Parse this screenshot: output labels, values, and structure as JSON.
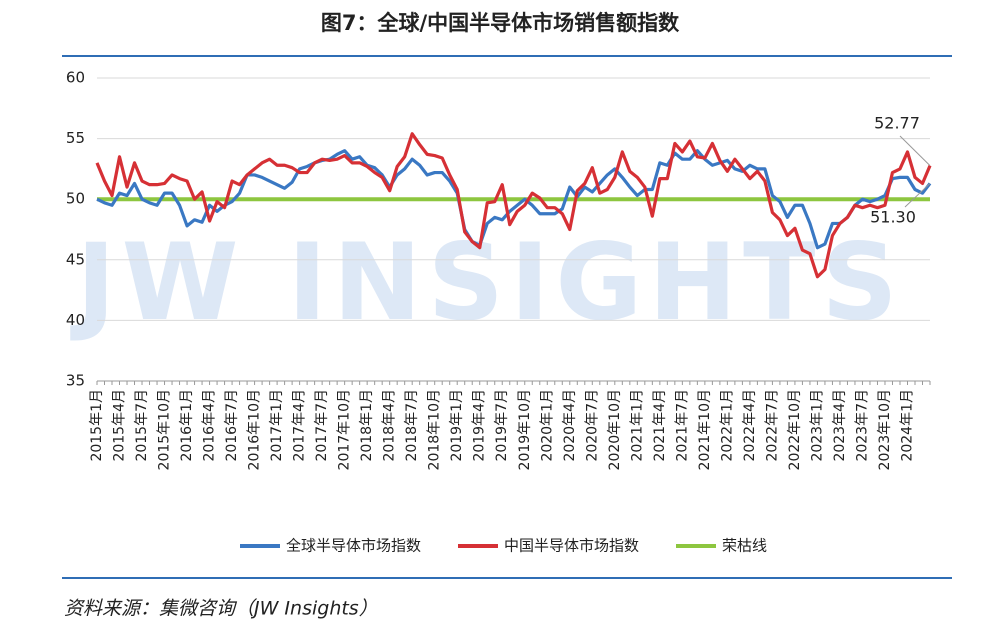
{
  "chart_data": {
    "type": "line",
    "title": "图7：全球/中国半导体市场销售额指数",
    "watermark": "JW INSIGHTS",
    "source": "资料来源：集微咨询（JW Insights）",
    "annotations": [
      "52.77",
      "51.30"
    ],
    "categories": [
      "2015年1月",
      null,
      null,
      "2015年4月",
      null,
      null,
      "2015年7月",
      null,
      null,
      "2015年10月",
      null,
      null,
      "2016年1月",
      null,
      null,
      "2016年4月",
      null,
      null,
      "2016年7月",
      null,
      null,
      "2016年10月",
      null,
      null,
      "2017年1月",
      null,
      null,
      "2017年4月",
      null,
      null,
      "2017年7月",
      null,
      null,
      "2017年10月",
      null,
      null,
      "2018年1月",
      null,
      null,
      "2018年4月",
      null,
      null,
      "2018年7月",
      null,
      null,
      "2018年10月",
      null,
      null,
      "2019年1月",
      null,
      null,
      "2019年4月",
      null,
      null,
      "2019年7月",
      null,
      null,
      "2019年10月",
      null,
      null,
      "2020年1月",
      null,
      null,
      "2020年4月",
      null,
      null,
      "2020年7月",
      null,
      null,
      "2020年10月",
      null,
      null,
      "2021年1月",
      null,
      null,
      "2021年4月",
      null,
      null,
      "2021年7月",
      null,
      null,
      "2021年10月",
      null,
      null,
      "2022年1月",
      null,
      null,
      "2022年4月",
      null,
      null,
      "2022年7月",
      null,
      null,
      "2022年10月",
      null,
      null,
      "2023年1月",
      null,
      null,
      "2023年4月",
      null,
      null,
      "2023年7月",
      null,
      null,
      "2023年10月",
      null,
      null,
      "2024年1月",
      null,
      null,
      null
    ],
    "series": [
      {
        "name": "全球半导体市场指数",
        "color": "#3a78c3",
        "values": [
          50.0,
          49.7,
          49.5,
          50.5,
          50.3,
          51.3,
          50.0,
          49.7,
          49.5,
          50.5,
          50.5,
          49.5,
          47.8,
          48.3,
          48.1,
          49.5,
          49.0,
          49.5,
          49.8,
          50.5,
          52.0,
          52.0,
          51.8,
          51.5,
          51.2,
          50.9,
          51.4,
          52.5,
          52.7,
          53.0,
          53.2,
          53.3,
          53.7,
          54.0,
          53.3,
          53.5,
          52.8,
          52.6,
          52.0,
          51.0,
          52.0,
          52.5,
          53.3,
          52.8,
          52.0,
          52.2,
          52.2,
          51.5,
          50.5,
          47.5,
          46.5,
          46.2,
          48.0,
          48.5,
          48.3,
          49.0,
          49.5,
          50.0,
          49.5,
          48.8,
          48.8,
          48.8,
          49.2,
          51.0,
          50.2,
          51.0,
          50.6,
          51.3,
          52.0,
          52.5,
          51.8,
          51.0,
          50.3,
          50.8,
          50.8,
          53.0,
          52.8,
          53.8,
          53.3,
          53.3,
          54.0,
          53.3,
          52.8,
          53.0,
          53.2,
          52.5,
          52.3,
          52.8,
          52.5,
          52.5,
          50.3,
          49.8,
          48.5,
          49.5,
          49.5,
          48.0,
          46.0,
          46.3,
          48.0,
          48.0,
          48.5,
          49.5,
          50.0,
          49.8,
          50.0,
          50.3,
          51.7,
          51.8,
          51.8,
          50.8,
          50.5,
          51.3
        ]
      },
      {
        "name": "中国半导体市场指数",
        "color": "#d63035",
        "values": [
          53.0,
          51.5,
          50.3,
          53.5,
          51.0,
          53.0,
          51.5,
          51.2,
          51.2,
          51.3,
          52.0,
          51.7,
          51.5,
          50.0,
          50.6,
          48.2,
          49.8,
          49.3,
          51.5,
          51.2,
          52.0,
          52.5,
          53.0,
          53.3,
          52.8,
          52.8,
          52.6,
          52.2,
          52.2,
          53.0,
          53.3,
          53.2,
          53.3,
          53.6,
          53.0,
          53.0,
          52.7,
          52.2,
          51.8,
          50.7,
          52.7,
          53.5,
          55.4,
          54.5,
          53.7,
          53.6,
          53.4,
          52.0,
          50.8,
          47.3,
          46.5,
          46.0,
          49.7,
          49.8,
          51.2,
          47.9,
          49.0,
          49.5,
          50.5,
          50.1,
          49.3,
          49.3,
          48.8,
          47.5,
          50.7,
          51.3,
          52.6,
          50.5,
          50.8,
          51.8,
          53.9,
          52.3,
          51.8,
          51.0,
          48.6,
          51.7,
          51.7,
          54.6,
          53.9,
          54.8,
          53.5,
          53.4,
          54.6,
          53.2,
          52.3,
          53.3,
          52.5,
          51.7,
          52.3,
          51.5,
          48.9,
          48.3,
          47.0,
          47.6,
          45.8,
          45.5,
          43.6,
          44.2,
          47.0,
          48.0,
          48.5,
          49.5,
          49.3,
          49.5,
          49.3,
          49.5,
          52.2,
          52.5,
          53.9,
          51.8,
          51.3,
          52.77
        ]
      },
      {
        "name": "荣枯线",
        "color": "#8dc63f",
        "values": [
          50,
          50,
          50,
          50,
          50,
          50,
          50,
          50,
          50,
          50,
          50,
          50,
          50,
          50,
          50,
          50,
          50,
          50,
          50,
          50,
          50,
          50,
          50,
          50,
          50,
          50,
          50,
          50,
          50,
          50,
          50,
          50,
          50,
          50,
          50,
          50,
          50,
          50,
          50,
          50,
          50,
          50,
          50,
          50,
          50,
          50,
          50,
          50,
          50,
          50,
          50,
          50,
          50,
          50,
          50,
          50,
          50,
          50,
          50,
          50,
          50,
          50,
          50,
          50,
          50,
          50,
          50,
          50,
          50,
          50,
          50,
          50,
          50,
          50,
          50,
          50,
          50,
          50,
          50,
          50,
          50,
          50,
          50,
          50,
          50,
          50,
          50,
          50,
          50,
          50,
          50,
          50,
          50,
          50,
          50,
          50,
          50,
          50,
          50,
          50,
          50,
          50,
          50,
          50,
          50,
          50,
          50,
          50,
          50,
          50,
          50,
          50
        ]
      }
    ],
    "ylim": [
      35,
      60
    ],
    "yticks": [
      35,
      40,
      45,
      50,
      55,
      60
    ],
    "grid": true
  }
}
